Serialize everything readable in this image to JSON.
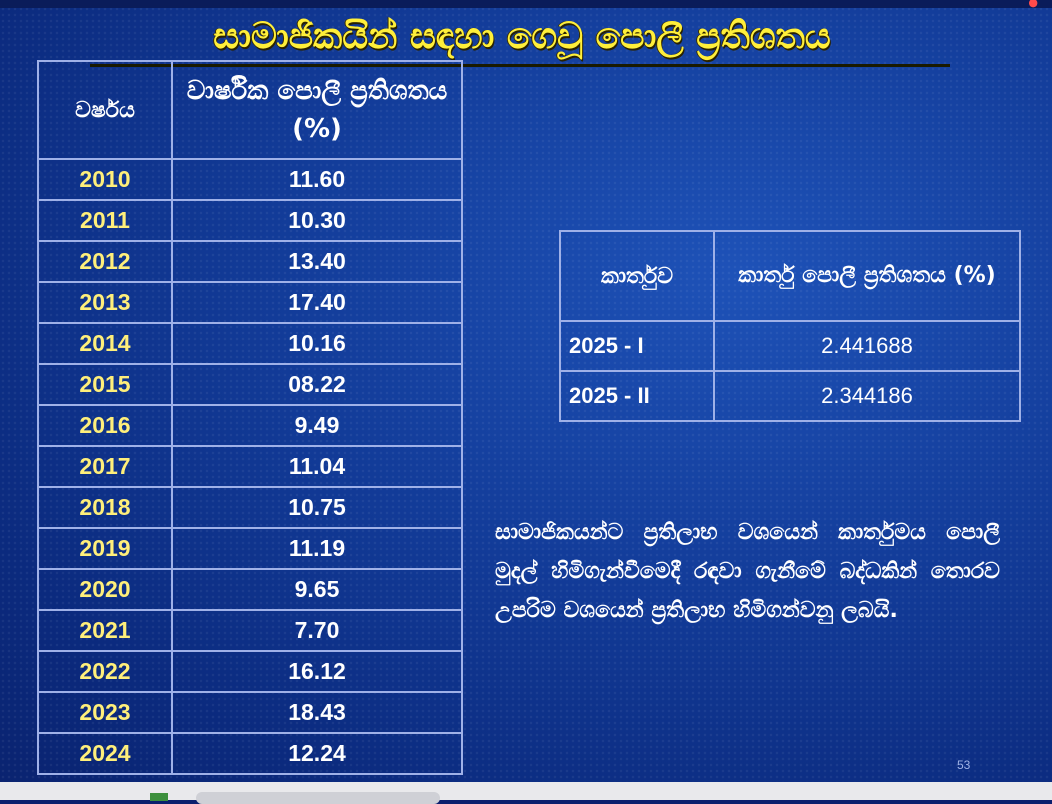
{
  "title": "සාමාජිකයින් සඳහා ගෙවූ පොලී ප්‍රතිශතය",
  "annual_table": {
    "headers": [
      "වර්ෂය",
      "වාර්ෂික පොලී ප්‍රතිශතය (%)"
    ],
    "rows": [
      {
        "year": "2010",
        "rate": "11.60"
      },
      {
        "year": "2011",
        "rate": "10.30"
      },
      {
        "year": "2012",
        "rate": "13.40"
      },
      {
        "year": "2013",
        "rate": "17.40"
      },
      {
        "year": "2014",
        "rate": "10.16"
      },
      {
        "year": "2015",
        "rate": "08.22"
      },
      {
        "year": "2016",
        "rate": "9.49"
      },
      {
        "year": "2017",
        "rate": "11.04"
      },
      {
        "year": "2018",
        "rate": "10.75"
      },
      {
        "year": "2019",
        "rate": "11.19"
      },
      {
        "year": "2020",
        "rate": "9.65"
      },
      {
        "year": "2021",
        "rate": "7.70"
      },
      {
        "year": "2022",
        "rate": "16.12"
      },
      {
        "year": "2023",
        "rate": "18.43"
      },
      {
        "year": "2024",
        "rate": "12.24"
      }
    ]
  },
  "quarter_table": {
    "headers": [
      "කාර්තුව",
      "කාර්තු පොලී ප්‍රතිශතය (%)"
    ],
    "rows": [
      {
        "quarter": "2025 - I",
        "rate": "2.441688"
      },
      {
        "quarter": "2025 - II",
        "rate": "2.344186"
      }
    ]
  },
  "note": "සාමාජිකයන්ට ප්‍රතිලාභ වශයෙන් කාර්තුමය පොලී මුදල් හිමිගැන්වීමෙදී රඳවා ගැනීමේ බද්ධකින් තොරව උපරිම වශයෙන් ප්‍රතිලාභ හිමිගන්වනු ලබයි.",
  "page_number": "53",
  "colors": {
    "background": "#123b98",
    "title": "#ffef3a",
    "year_text": "#ffef7a",
    "grid": "#9fb1e8"
  }
}
